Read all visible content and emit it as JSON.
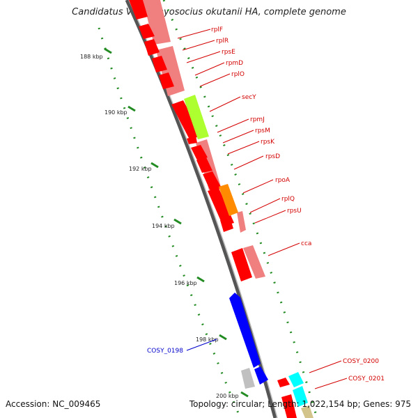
{
  "title": "Candidatus Vesicomyosocius okutanii HA, complete genome",
  "footer": {
    "accession": "Accession: NC_009465",
    "summary": "Topology: circular; Length: 1,022,154 bp; Genes: 975"
  },
  "ticks": [
    {
      "label": "188 kbp"
    },
    {
      "label": "190 kbp"
    },
    {
      "label": "192 kbp"
    },
    {
      "label": "194 kbp"
    },
    {
      "label": "196 kbp"
    },
    {
      "label": "198 kbp"
    },
    {
      "label": "200 kbp"
    }
  ],
  "gene_labels": [
    {
      "text": "rplF"
    },
    {
      "text": "rplR"
    },
    {
      "text": "rpsE"
    },
    {
      "text": "rpmD"
    },
    {
      "text": "rplO"
    },
    {
      "text": "secY"
    },
    {
      "text": "rpmJ"
    },
    {
      "text": "rpsM"
    },
    {
      "text": "rpsK"
    },
    {
      "text": "rpsD"
    },
    {
      "text": "rpoA"
    },
    {
      "text": "rplQ"
    },
    {
      "text": "rpsU"
    },
    {
      "text": "cca"
    },
    {
      "text": "COSY_0198"
    },
    {
      "text": "COSY_0200"
    },
    {
      "text": "COSY_0201"
    }
  ],
  "colors": {
    "cds_red": "#ff0000",
    "rna_pink": "#f08080",
    "secY_green": "#adff2f",
    "rpoA_orange": "#ff8c00",
    "cosy_blue": "#0000ff",
    "gray": "#c0c0c0",
    "cyan": "#00ffff",
    "backbone": "#808080",
    "tick_green": "#228b22"
  }
}
